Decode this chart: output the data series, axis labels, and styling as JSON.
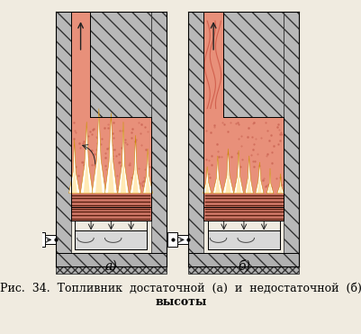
{
  "background_color": "#f0ebe0",
  "caption_line1": "Рис.  34.  Топливник  достаточной  (а)  и  недостаточной  (б)",
  "caption_line2": "высоты",
  "label_a": "а)",
  "label_b": "б)",
  "fig_width": 4.02,
  "fig_height": 3.71,
  "dpi": 100,
  "caption_fontsize": 9.0,
  "label_fontsize": 10,
  "hatch_color": "#444444",
  "furnace_fill": "#e8907a",
  "furnace_fill_dark": "#d07868",
  "grate_color": "#7a3520",
  "arrow_color": "#222222"
}
